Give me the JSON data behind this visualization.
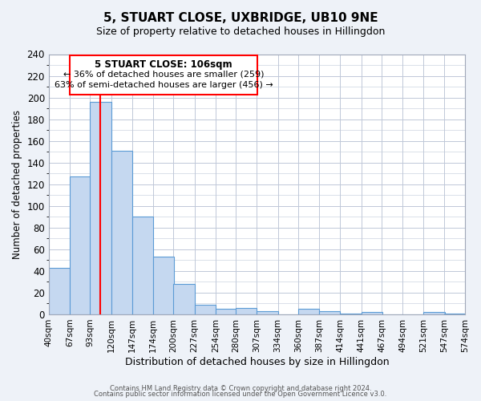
{
  "title": "5, STUART CLOSE, UXBRIDGE, UB10 9NE",
  "subtitle": "Size of property relative to detached houses in Hillingdon",
  "xlabel": "Distribution of detached houses by size in Hillingdon",
  "ylabel": "Number of detached properties",
  "bar_values": [
    43,
    127,
    196,
    151,
    90,
    53,
    28,
    9,
    5,
    6,
    3,
    0,
    5,
    3,
    1,
    2,
    0,
    0,
    2,
    1
  ],
  "bar_left_edges": [
    40,
    67,
    93,
    120,
    147,
    174,
    200,
    227,
    254,
    280,
    307,
    334,
    360,
    387,
    414,
    441,
    467,
    494,
    521,
    547
  ],
  "bin_width": 27,
  "tick_labels": [
    "40sqm",
    "67sqm",
    "93sqm",
    "120sqm",
    "147sqm",
    "174sqm",
    "200sqm",
    "227sqm",
    "254sqm",
    "280sqm",
    "307sqm",
    "334sqm",
    "360sqm",
    "387sqm",
    "414sqm",
    "441sqm",
    "467sqm",
    "494sqm",
    "521sqm",
    "547sqm",
    "574sqm"
  ],
  "bar_color": "#c5d8f0",
  "bar_edge_color": "#5b9bd5",
  "red_line_x": 106,
  "ylim": [
    0,
    240
  ],
  "yticks": [
    0,
    20,
    40,
    60,
    80,
    100,
    120,
    140,
    160,
    180,
    200,
    220,
    240
  ],
  "annotation_title": "5 STUART CLOSE: 106sqm",
  "annotation_line1": "← 36% of detached houses are smaller (259)",
  "annotation_line2": "63% of semi-detached houses are larger (456) →",
  "footer1": "Contains HM Land Registry data © Crown copyright and database right 2024.",
  "footer2": "Contains public sector information licensed under the Open Government Licence v3.0.",
  "bg_color": "#eef2f8",
  "plot_bg_color": "#ffffff",
  "grid_color": "#c0c8d8"
}
